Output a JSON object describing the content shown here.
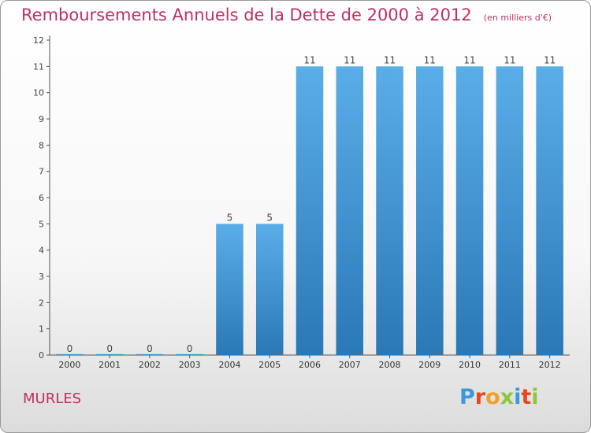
{
  "header": {
    "title": "Remboursements Annuels de la Dette de 2000 à 2012",
    "unit": "(en milliers d'€)"
  },
  "footer": {
    "commune": "MURLES",
    "brand": "Proxiti",
    "brand_colors": [
      "#3a9ad9",
      "#e8471d",
      "#f0a028",
      "#8cc63f",
      "#3a9ad9",
      "#e8471d",
      "#8cc63f"
    ]
  },
  "colors": {
    "title": "#c0305e",
    "bar_light": "#5aaee8",
    "bar_dark": "#2a78b6",
    "axis": "#555555"
  },
  "chart_data": {
    "type": "bar",
    "categories": [
      "2000",
      "2001",
      "2002",
      "2003",
      "2004",
      "2005",
      "2006",
      "2007",
      "2008",
      "2009",
      "2010",
      "2011",
      "2012"
    ],
    "values": [
      0,
      0,
      0,
      0,
      5,
      5,
      11,
      11,
      11,
      11,
      11,
      11,
      11
    ],
    "ylim": [
      0,
      12
    ],
    "yticks": [
      0,
      1,
      2,
      3,
      4,
      5,
      6,
      7,
      8,
      9,
      10,
      11,
      12
    ],
    "grid": false,
    "legend": "none"
  }
}
